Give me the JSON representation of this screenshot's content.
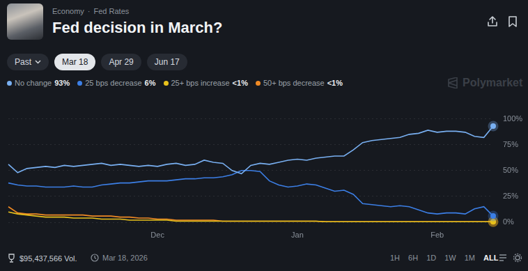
{
  "header": {
    "category": "Economy",
    "separator": "·",
    "topic": "Fed Rates",
    "title": "Fed decision in March?"
  },
  "tabs": {
    "items": [
      "Past",
      "Mar 18",
      "Apr 29",
      "Jun 17"
    ],
    "selected": "Mar 18"
  },
  "watermark": "Polymarket",
  "chart_data": {
    "type": "line",
    "categories": [
      null,
      null,
      null,
      null,
      null,
      null,
      null,
      null,
      null,
      null,
      null,
      null,
      null,
      null,
      null,
      null,
      "Dec",
      null,
      null,
      null,
      null,
      null,
      null,
      null,
      null,
      null,
      null,
      null,
      null,
      null,
      null,
      "Jan",
      null,
      null,
      null,
      null,
      null,
      null,
      null,
      null,
      null,
      null,
      null,
      null,
      null,
      null,
      "Feb",
      null,
      null,
      null,
      null,
      null,
      null
    ],
    "series": [
      {
        "name": "No change",
        "current": "93%",
        "color": "#79b0f2",
        "values": [
          56,
          48,
          52,
          53,
          54,
          53,
          55,
          54,
          55,
          56,
          57,
          55,
          56,
          55,
          54,
          55,
          54,
          56,
          57,
          55,
          56,
          60,
          58,
          57,
          50,
          47,
          55,
          57,
          56,
          58,
          60,
          61,
          60,
          62,
          63,
          64,
          64,
          70,
          77,
          79,
          80,
          81,
          82,
          85,
          86,
          89,
          87,
          88,
          88,
          87,
          83,
          82,
          93
        ]
      },
      {
        "name": "25 bps decrease",
        "current": "6%",
        "color": "#3c7fe6",
        "values": [
          38,
          36,
          35,
          35,
          34,
          34,
          34,
          35,
          34,
          34,
          36,
          37,
          38,
          38,
          39,
          40,
          40,
          40,
          41,
          42,
          42,
          43,
          43,
          44,
          46,
          50,
          50,
          49,
          40,
          36,
          34,
          35,
          37,
          36,
          33,
          30,
          31,
          27,
          18,
          17,
          16,
          15,
          16,
          15,
          12,
          9,
          8,
          9,
          9,
          8,
          13,
          15,
          6
        ]
      },
      {
        "name": "25+ bps increase",
        "current": "<1%",
        "color": "#e9c21c",
        "values": [
          10,
          8,
          7,
          6,
          5,
          5,
          5,
          4,
          4,
          4,
          3,
          3,
          3,
          2,
          2,
          2,
          2,
          2,
          1,
          1,
          1,
          1,
          1,
          1,
          1,
          1,
          1,
          1,
          1,
          1,
          1,
          1,
          1,
          1,
          0.5,
          0.5,
          0.5,
          0.5,
          0.5,
          0.5,
          0.5,
          0.5,
          0.5,
          0.5,
          0.5,
          0.5,
          0.5,
          0.5,
          0.5,
          0.5,
          0.5,
          0.5,
          0.5
        ]
      },
      {
        "name": "50+ bps decrease",
        "current": "<1%",
        "color": "#f08a24",
        "values": [
          15,
          9,
          8,
          8,
          7,
          7,
          7,
          7,
          7,
          6,
          6,
          6,
          5,
          5,
          4,
          4,
          3,
          3,
          2,
          2,
          2,
          2,
          2,
          1,
          1,
          1,
          1,
          1,
          1,
          1,
          1,
          1,
          1,
          1,
          0.5,
          0.5,
          0.5,
          0.5,
          0.5,
          0.5,
          0.5,
          0.5,
          0.5,
          0.5,
          0.5,
          0.5,
          0.5,
          0.5,
          0.5,
          0.5,
          0.5,
          0.5,
          0.5
        ]
      }
    ],
    "ylim": [
      0,
      100
    ],
    "yticks": [
      {
        "value": 0,
        "label": "0%"
      },
      {
        "value": 25,
        "label": "25%"
      },
      {
        "value": 50,
        "label": "50%"
      },
      {
        "value": 75,
        "label": "75%"
      },
      {
        "value": 100,
        "label": "100%"
      }
    ],
    "grid": true,
    "legend": "top-left"
  },
  "footer": {
    "volume": "$95,437,566 Vol.",
    "date": "Mar 18, 2026",
    "ranges": [
      "1H",
      "6H",
      "1D",
      "1W",
      "1M",
      "ALL"
    ],
    "selected_range": "ALL"
  }
}
